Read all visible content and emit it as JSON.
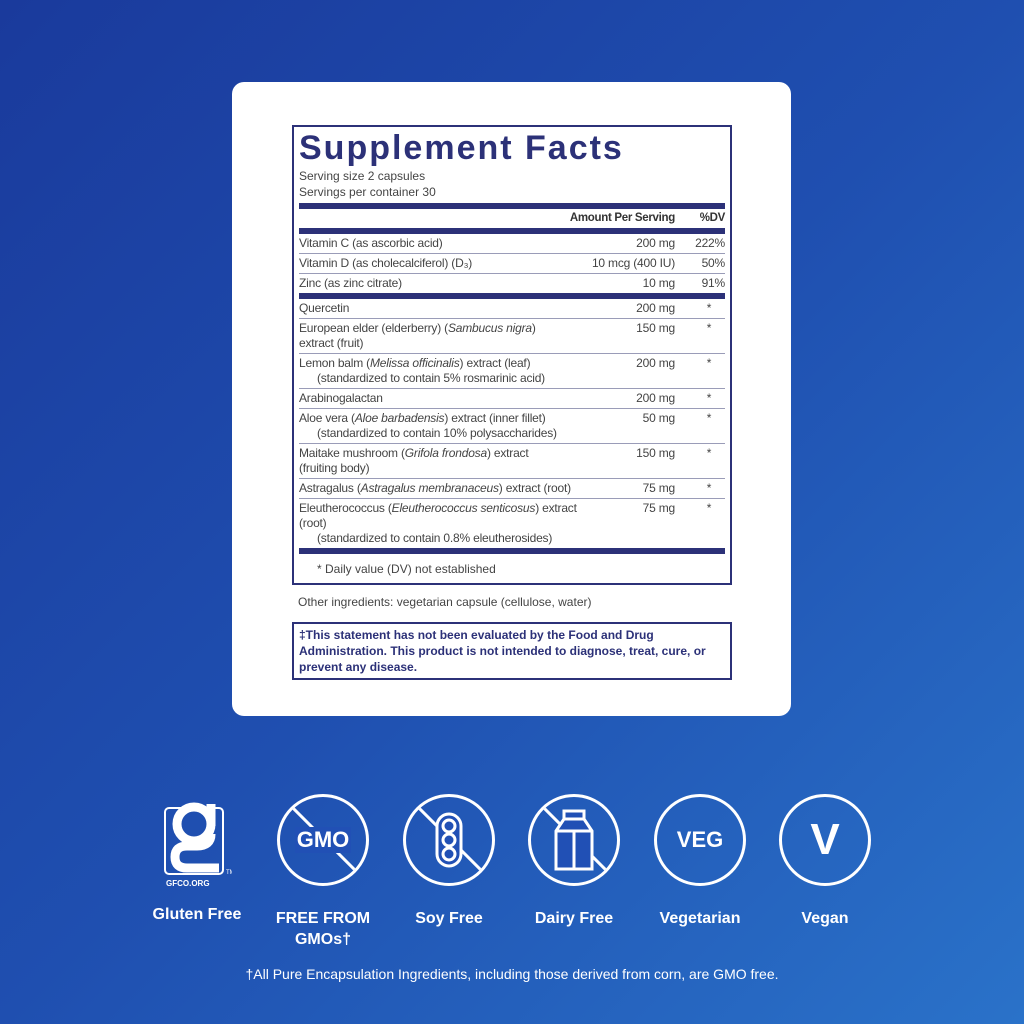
{
  "facts": {
    "title": "Supplement Facts",
    "serving_size": "Serving size  2 capsules",
    "servings_per_container": "Servings per container  30",
    "header": {
      "amount": "Amount Per Serving",
      "dv": "%DV"
    },
    "vitamins": [
      {
        "name": "Vitamin C (as ascorbic acid)",
        "amount": "200 mg",
        "dv": "222%"
      },
      {
        "name": "Vitamin D (as cholecalciferol) (D₃)",
        "amount": "10 mcg (400 IU)",
        "dv": "50%"
      },
      {
        "name": "Zinc (as zinc citrate)",
        "amount": "10 mg",
        "dv": "91%"
      }
    ],
    "others": [
      {
        "name": "Quercetin",
        "line2": "",
        "amount": "200 mg",
        "dv": "*"
      },
      {
        "name": "European elder (elderberry) (Sambucus nigra)",
        "line2": "extract (fruit)",
        "amount": "150 mg",
        "dv": "*"
      },
      {
        "name": "Lemon balm (Melissa officinalis) extract (leaf)",
        "line2": "(standardized to contain 5% rosmarinic acid)",
        "amount": "200 mg",
        "dv": "*"
      },
      {
        "name": "Arabinogalactan",
        "line2": "",
        "amount": "200 mg",
        "dv": "*"
      },
      {
        "name": "Aloe vera (Aloe barbadensis) extract (inner fillet)",
        "line2": "(standardized to contain 10% polysaccharides)",
        "amount": "50 mg",
        "dv": "*"
      },
      {
        "name": "Maitake mushroom (Grifola frondosa) extract",
        "line2": "(fruiting body)",
        "amount": "150 mg",
        "dv": "*"
      },
      {
        "name": "Astragalus (Astragalus membranaceus) extract (root)",
        "line2": "",
        "amount": "75 mg",
        "dv": "*"
      },
      {
        "name": "Eleutherococcus (Eleutherococcus senticosus) extract (root)",
        "line2": "(standardized to contain 0.8% eleutherosides)",
        "amount": "75 mg",
        "dv": "*"
      }
    ],
    "footnote": "* Daily value (DV) not established",
    "other_ingredients": "Other ingredients: vegetarian capsule (cellulose, water)",
    "disclaimer": "‡This statement has not been evaluated by the Food and Drug Administration. This product is not intended to diagnose, treat, cure, or prevent any disease."
  },
  "badges": [
    {
      "label": "Gluten Free",
      "icon": "gluten-free-gfco-icon",
      "logo_text": "GFCO.ORG"
    },
    {
      "label": "FREE FROM GMOs†",
      "icon": "no-gmo-icon",
      "logo_text": "GMO"
    },
    {
      "label": "Soy Free",
      "icon": "no-soy-icon"
    },
    {
      "label": "Dairy Free",
      "icon": "no-dairy-icon"
    },
    {
      "label": "Vegetarian",
      "icon": "veg-icon",
      "logo_text": "VEG"
    },
    {
      "label": "Vegan",
      "icon": "vegan-icon",
      "logo_text": "V"
    }
  ],
  "footnote": "†All Pure Encapsulation Ingredients, including those derived from corn, are GMO free.",
  "colors": {
    "navy": "#2c3178",
    "bg_start": "#1a3a9c",
    "bg_end": "#2a72c9"
  }
}
